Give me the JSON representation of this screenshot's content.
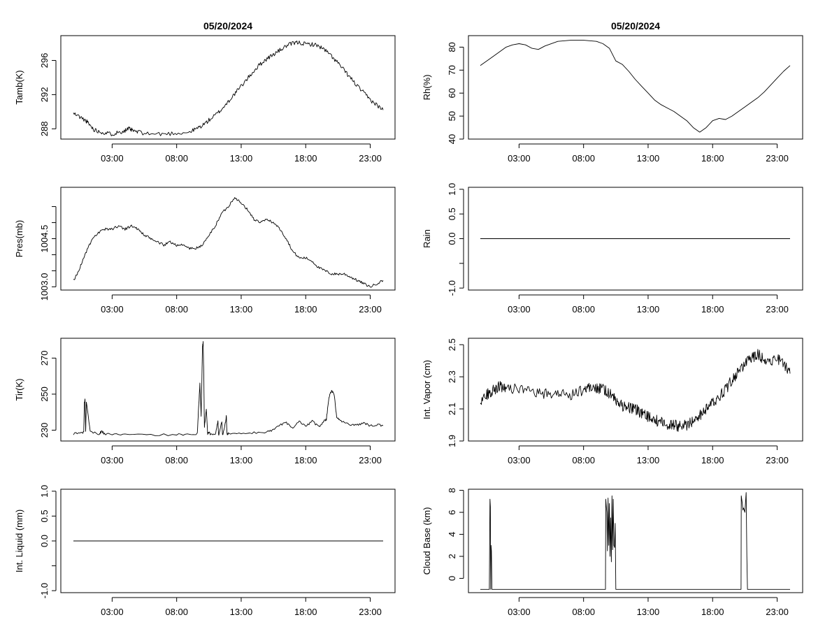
{
  "chart_data": [
    {
      "id": "tamb",
      "type": "line",
      "title": "05/20/2024",
      "ylabel": "Tamb(K)",
      "xlabel": "",
      "xlim": [
        0,
        26
      ],
      "ylim": [
        286.8,
        298.9
      ],
      "yticks": [
        288,
        292,
        296
      ],
      "xticks": [
        3,
        8,
        13,
        18,
        23
      ],
      "xtick_labels": [
        "03:00",
        "08:00",
        "13:00",
        "18:00",
        "23:00"
      ],
      "x": [
        0,
        0.5,
        1,
        1.3,
        1.6,
        2,
        2.5,
        3,
        3.5,
        4,
        4.3,
        4.6,
        5,
        6,
        7,
        8,
        9,
        9.5,
        10,
        10.5,
        11,
        11.5,
        12,
        12.5,
        13,
        13.5,
        14,
        14.5,
        15,
        15.5,
        16,
        16.5,
        17,
        17.5,
        18,
        18.5,
        19,
        19.5,
        20,
        20.5,
        21,
        21.5,
        22,
        22.5,
        23,
        23.5,
        24
      ],
      "values": [
        289.8,
        289.4,
        288.9,
        288.4,
        287.9,
        287.7,
        287.5,
        287.4,
        287.6,
        287.8,
        288.0,
        287.8,
        287.6,
        287.4,
        287.4,
        287.5,
        287.6,
        288.0,
        288.4,
        289.0,
        289.6,
        290.3,
        291.2,
        292.1,
        293.0,
        293.9,
        294.8,
        295.6,
        296.2,
        296.7,
        297.2,
        297.7,
        298.0,
        298.1,
        297.9,
        297.9,
        297.7,
        297.2,
        296.5,
        295.7,
        294.8,
        293.9,
        293.0,
        292.2,
        291.4,
        290.8,
        290.2
      ],
      "noise": 0.25,
      "density": 8,
      "seed": 11
    },
    {
      "id": "rh",
      "type": "line",
      "title": "05/20/2024",
      "ylabel": "Rh(%)",
      "xlabel": "",
      "xlim": [
        0,
        26
      ],
      "ylim": [
        40,
        85
      ],
      "yticks": [
        40,
        50,
        60,
        70,
        80
      ],
      "xticks": [
        3,
        8,
        13,
        18,
        23
      ],
      "xtick_labels": [
        "03:00",
        "08:00",
        "13:00",
        "18:00",
        "23:00"
      ],
      "x": [
        0,
        0.5,
        1,
        1.5,
        2,
        2.5,
        3,
        3.5,
        4,
        4.5,
        5,
        6,
        7,
        8,
        9,
        9.5,
        10,
        10.5,
        11,
        11.5,
        12,
        12.5,
        13,
        13.5,
        14,
        14.5,
        15,
        15.5,
        16,
        16.5,
        17,
        17.5,
        18,
        18.5,
        19,
        19.5,
        20,
        20.5,
        21,
        21.5,
        22,
        22.5,
        23,
        23.5,
        24
      ],
      "values": [
        72,
        74,
        76,
        78,
        80,
        81,
        81.5,
        81,
        79.5,
        79,
        80.5,
        82.5,
        83,
        83,
        82.5,
        81.5,
        79.5,
        74,
        72.5,
        69.5,
        66,
        63,
        60,
        57,
        55,
        53.5,
        52,
        50,
        48,
        45,
        43,
        45,
        48,
        49,
        48.5,
        50,
        52,
        54,
        56,
        58,
        60.5,
        63.5,
        66.5,
        69.5,
        72
      ]
    },
    {
      "id": "pres",
      "type": "line",
      "title": "",
      "ylabel": "Pres(mb)",
      "xlabel": "",
      "xlim": [
        0,
        26
      ],
      "ylim": [
        1002.9,
        1006.1
      ],
      "yticks": [
        1003.0,
        1003.5,
        1004.0,
        1004.5,
        1005.0,
        1005.5
      ],
      "ytick_labels": [
        "1003.0",
        "",
        "",
        "1004.5",
        "",
        ""
      ],
      "xticks": [
        3,
        8,
        13,
        18,
        23
      ],
      "xtick_labels": [
        "03:00",
        "08:00",
        "13:00",
        "18:00",
        "23:00"
      ],
      "x": [
        0,
        0.3,
        0.6,
        1,
        1.5,
        2,
        2.5,
        3,
        3.5,
        4,
        4.5,
        5,
        5.5,
        6,
        6.5,
        7,
        7.5,
        8,
        8.5,
        9,
        9.5,
        10,
        10.5,
        11,
        11.5,
        12,
        12.5,
        13,
        13.5,
        14,
        14.5,
        15,
        15.5,
        16,
        16.5,
        17,
        17.5,
        18,
        18.5,
        19,
        19.5,
        20,
        20.5,
        21,
        21.5,
        22,
        22.5,
        23,
        23.5,
        24
      ],
      "values": [
        1003.2,
        1003.4,
        1003.7,
        1004.1,
        1004.5,
        1004.7,
        1004.8,
        1004.8,
        1004.9,
        1004.8,
        1004.9,
        1004.8,
        1004.6,
        1004.5,
        1004.4,
        1004.3,
        1004.4,
        1004.3,
        1004.3,
        1004.2,
        1004.2,
        1004.3,
        1004.6,
        1004.9,
        1005.3,
        1005.5,
        1005.8,
        1005.6,
        1005.4,
        1005.1,
        1005.0,
        1005.1,
        1005.0,
        1004.8,
        1004.5,
        1004.1,
        1003.9,
        1003.9,
        1003.8,
        1003.6,
        1003.5,
        1003.4,
        1003.4,
        1003.4,
        1003.3,
        1003.2,
        1003.1,
        1003.0,
        1003.1,
        1003.2
      ],
      "noise": 0.04,
      "density": 8,
      "seed": 23
    },
    {
      "id": "rain",
      "type": "line",
      "title": "",
      "ylabel": "Rain",
      "xlabel": "",
      "xlim": [
        0,
        26
      ],
      "ylim": [
        -1.04,
        1.04
      ],
      "yticks": [
        -1.0,
        -0.5,
        0.0,
        0.5,
        1.0
      ],
      "ytick_labels": [
        "-1.0",
        "",
        "0.0",
        "0.5",
        "1.0"
      ],
      "xticks": [
        3,
        8,
        13,
        18,
        23
      ],
      "xtick_labels": [
        "03:00",
        "08:00",
        "13:00",
        "18:00",
        "23:00"
      ],
      "x": [
        0,
        24
      ],
      "values": [
        0,
        0
      ]
    },
    {
      "id": "tir",
      "type": "line",
      "title": "",
      "ylabel": "Tir(K)",
      "xlabel": "",
      "xlim": [
        0,
        26
      ],
      "ylim": [
        224,
        281
      ],
      "yticks": [
        230,
        250,
        270
      ],
      "xticks": [
        3,
        8,
        13,
        18,
        23
      ],
      "xtick_labels": [
        "03:00",
        "08:00",
        "13:00",
        "18:00",
        "23:00"
      ],
      "x": [
        0,
        0.6,
        0.8,
        0.85,
        0.9,
        0.95,
        1.0,
        1.3,
        2,
        2.2,
        2.4,
        3,
        4,
        6,
        8,
        9,
        9.6,
        9.7,
        9.8,
        9.9,
        10.0,
        10.05,
        10.1,
        10.15,
        10.3,
        10.4,
        10.5,
        10.6,
        11,
        11.2,
        11.25,
        11.3,
        11.5,
        11.55,
        11.6,
        11.8,
        11.85,
        11.9,
        12,
        13,
        14,
        15,
        15.5,
        16,
        16.5,
        17,
        17.5,
        18,
        18.5,
        19,
        19.2,
        19.4,
        19.6,
        19.8,
        20.0,
        20.2,
        20.4,
        20.6,
        21,
        21.5,
        22,
        22.5,
        23,
        23.5,
        24
      ],
      "values": [
        228,
        228.5,
        229,
        245,
        247,
        229,
        246,
        229,
        228,
        229.5,
        228,
        227.5,
        227.5,
        227.5,
        227.5,
        227.5,
        228,
        242,
        256,
        238,
        276,
        279,
        262,
        232,
        242,
        228,
        229,
        228,
        228,
        235,
        227.5,
        228,
        235,
        227.5,
        228,
        235,
        238,
        228,
        228,
        228,
        228.5,
        229,
        230,
        233,
        234,
        231,
        235,
        232,
        235,
        232,
        233,
        235,
        236,
        248,
        252,
        250,
        237,
        236,
        234,
        233,
        233,
        234,
        232.5,
        233,
        232.5
      ],
      "noise": 0.6,
      "density": 6,
      "seed": 37
    },
    {
      "id": "vapor",
      "type": "line",
      "title": "",
      "ylabel": "Int. Vapor (cm)",
      "xlabel": "",
      "xlim": [
        0,
        26
      ],
      "ylim": [
        1.9,
        2.54
      ],
      "yticks": [
        1.9,
        2.1,
        2.3,
        2.5
      ],
      "xticks": [
        3,
        8,
        13,
        18,
        23
      ],
      "xtick_labels": [
        "03:00",
        "08:00",
        "13:00",
        "18:00",
        "23:00"
      ],
      "x": [
        0,
        0.5,
        1,
        1.5,
        2,
        3,
        4,
        5,
        6,
        7,
        8,
        8.5,
        9,
        9.5,
        10,
        10.5,
        11,
        11.5,
        12,
        12.5,
        13,
        13.5,
        14,
        14.5,
        15,
        15.5,
        16,
        16.5,
        17,
        17.5,
        18,
        18.5,
        19,
        19.5,
        20,
        20.5,
        21,
        21.5,
        22,
        22.5,
        23,
        23.5,
        24
      ],
      "values": [
        2.15,
        2.19,
        2.22,
        2.24,
        2.24,
        2.22,
        2.2,
        2.19,
        2.2,
        2.19,
        2.22,
        2.24,
        2.23,
        2.22,
        2.2,
        2.15,
        2.12,
        2.11,
        2.1,
        2.07,
        2.05,
        2.03,
        2.02,
        2.0,
        2.0,
        1.99,
        2.0,
        2.03,
        2.06,
        2.1,
        2.14,
        2.18,
        2.22,
        2.28,
        2.33,
        2.38,
        2.42,
        2.44,
        2.41,
        2.4,
        2.42,
        2.38,
        2.32
      ],
      "noise": 0.035,
      "density": 12,
      "seed": 53
    },
    {
      "id": "liquid",
      "type": "line",
      "title": "",
      "ylabel": "Int. Liquid (mm)",
      "xlabel": "",
      "xlim": [
        0,
        26
      ],
      "ylim": [
        -1.04,
        1.04
      ],
      "yticks": [
        -1.0,
        -0.5,
        0.0,
        0.5,
        1.0
      ],
      "ytick_labels": [
        "-1.0",
        "",
        "0.0",
        "0.5",
        "1.0"
      ],
      "xticks": [
        3,
        8,
        13,
        18,
        23
      ],
      "xtick_labels": [
        "03:00",
        "08:00",
        "13:00",
        "18:00",
        "23:00"
      ],
      "x": [
        0,
        24
      ],
      "values": [
        0,
        0
      ]
    },
    {
      "id": "cloudbase",
      "type": "line",
      "title": "",
      "ylabel": "Cloud Base (km)",
      "xlabel": "",
      "xlim": [
        0,
        26
      ],
      "ylim": [
        -1.3,
        8.1
      ],
      "yticks": [
        0,
        2,
        4,
        6,
        8
      ],
      "xticks": [
        3,
        8,
        13,
        18,
        23
      ],
      "xtick_labels": [
        "03:00",
        "08:00",
        "13:00",
        "18:00",
        "23:00"
      ],
      "x": [
        0,
        0.7,
        0.72,
        0.75,
        0.78,
        0.8,
        0.83,
        0.86,
        0.9,
        0.93,
        9.7,
        9.72,
        9.8,
        9.85,
        9.9,
        9.95,
        10.0,
        10.05,
        10.1,
        10.15,
        10.2,
        10.25,
        10.3,
        10.35,
        10.4,
        10.45,
        10.5,
        10.55,
        20.2,
        20.22,
        20.3,
        20.35,
        20.4,
        20.5,
        20.6,
        20.65,
        20.7,
        20.75,
        24
      ],
      "values": [
        -1,
        -1,
        3,
        7.2,
        6.5,
        -1,
        3,
        2.5,
        -1,
        -1,
        -1,
        7.2,
        6,
        2.5,
        7.3,
        3,
        6.8,
        2,
        5.5,
        1.5,
        7.5,
        2.6,
        7.2,
        3,
        2.8,
        5,
        -1,
        -1,
        -1,
        7.5,
        6.8,
        6.2,
        6.4,
        6.0,
        7.8,
        2,
        -1,
        -1,
        -1
      ]
    }
  ]
}
